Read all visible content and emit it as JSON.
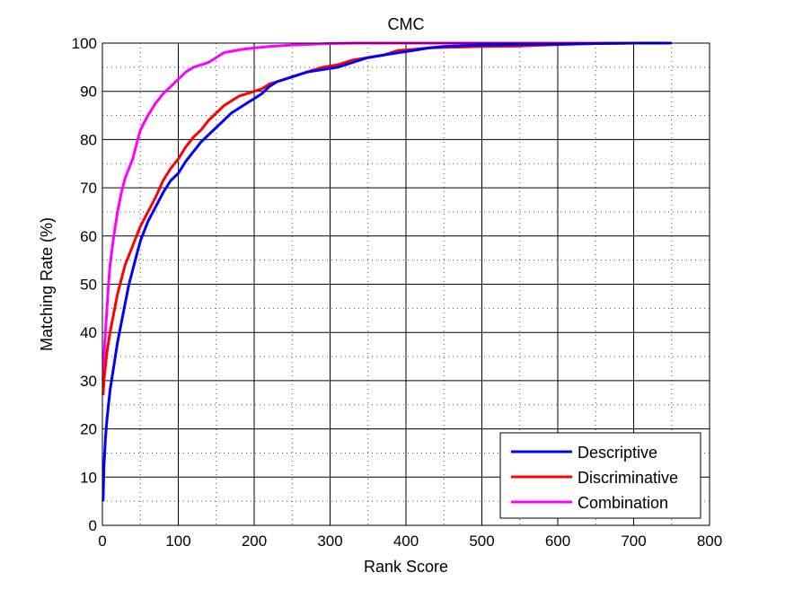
{
  "chart_data": {
    "type": "line",
    "title": "CMC",
    "xlabel": "Rank Score",
    "ylabel": "Matching Rate (%)",
    "xlim": [
      0,
      800
    ],
    "ylim": [
      0,
      100
    ],
    "xticks": [
      0,
      100,
      200,
      300,
      400,
      500,
      600,
      700,
      800
    ],
    "yticks": [
      0,
      10,
      20,
      30,
      40,
      50,
      60,
      70,
      80,
      90,
      100
    ],
    "grid": true,
    "legend_position": "bottom-right",
    "series": [
      {
        "name": "Descriptive",
        "color": "#0000ff",
        "x": [
          1,
          2,
          4,
          6,
          8,
          10,
          15,
          20,
          25,
          30,
          35,
          40,
          45,
          50,
          60,
          70,
          80,
          90,
          100,
          110,
          120,
          130,
          140,
          150,
          160,
          170,
          180,
          190,
          200,
          210,
          220,
          230,
          250,
          270,
          290,
          310,
          330,
          350,
          370,
          390,
          410,
          430,
          450,
          480,
          500,
          550,
          600,
          650,
          700,
          750
        ],
        "y": [
          5,
          12,
          18,
          22,
          25,
          28,
          33,
          38,
          42,
          46,
          50,
          53,
          56,
          59,
          63,
          66,
          69,
          71.5,
          73,
          75.5,
          77.5,
          79.5,
          81,
          82.5,
          84,
          85.5,
          86.5,
          87.5,
          88.5,
          89.5,
          91,
          92,
          93,
          94,
          94.5,
          95,
          96,
          97,
          97.5,
          98,
          98.5,
          99,
          99.3,
          99.5,
          99.6,
          99.7,
          99.8,
          99.9,
          100,
          100
        ]
      },
      {
        "name": "Discriminative",
        "color": "#ff0000",
        "x": [
          1,
          2,
          4,
          6,
          8,
          10,
          15,
          20,
          25,
          30,
          35,
          40,
          45,
          50,
          60,
          70,
          80,
          90,
          100,
          110,
          120,
          130,
          140,
          150,
          160,
          170,
          180,
          190,
          200,
          210,
          220,
          230,
          250,
          270,
          290,
          310,
          330,
          350,
          370,
          390,
          410,
          430,
          450,
          480,
          500,
          550,
          600,
          650,
          700,
          750
        ],
        "y": [
          27,
          30,
          33,
          36,
          38,
          40,
          44,
          48,
          51,
          54,
          56,
          58,
          60,
          62,
          65,
          68,
          71.5,
          74,
          76,
          78.5,
          80.5,
          82,
          84,
          85.5,
          87,
          88,
          89,
          89.5,
          90,
          90.5,
          91.5,
          92,
          93,
          94,
          95,
          95.5,
          96.5,
          97,
          97.5,
          98.5,
          98.7,
          99,
          99.1,
          99.2,
          99.3,
          99.4,
          99.7,
          99.9,
          100,
          100
        ]
      },
      {
        "name": "Combination",
        "color": "#ff00ff",
        "x": [
          1,
          2,
          4,
          6,
          8,
          10,
          15,
          20,
          25,
          30,
          35,
          40,
          45,
          50,
          60,
          70,
          80,
          90,
          100,
          110,
          120,
          130,
          140,
          150,
          160,
          170,
          180,
          190,
          200,
          220,
          250,
          280,
          300,
          330,
          350,
          400,
          500,
          600,
          700,
          750
        ],
        "y": [
          30,
          35,
          40,
          45,
          50,
          54,
          60,
          65,
          69,
          72,
          74,
          76,
          79,
          82,
          85,
          87.5,
          89.5,
          91,
          92.5,
          94,
          95,
          95.5,
          96,
          97,
          98,
          98.3,
          98.6,
          98.8,
          99,
          99.3,
          99.6,
          99.8,
          99.9,
          100,
          100,
          100,
          100,
          100,
          100,
          100
        ]
      }
    ]
  }
}
